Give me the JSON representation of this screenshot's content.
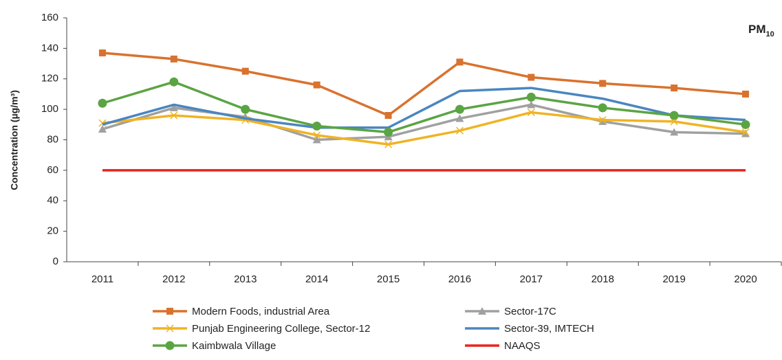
{
  "chart_data": {
    "type": "line",
    "annotation": {
      "text": "PM",
      "subscript": "10"
    },
    "ylabel": "Concentration (µg/m³)",
    "categories": [
      "2011",
      "2012",
      "2013",
      "2014",
      "2015",
      "2016",
      "2017",
      "2018",
      "2019",
      "2020"
    ],
    "ylim": [
      0,
      160
    ],
    "yticks": [
      0,
      20,
      40,
      60,
      80,
      100,
      120,
      140,
      160
    ],
    "grid": false,
    "legend": "bottom",
    "series": [
      {
        "name": "Modern Foods, industrial Area",
        "color": "#d9722e",
        "marker": "square",
        "values": [
          137,
          133,
          125,
          116,
          96,
          131,
          121,
          117,
          114,
          110
        ]
      },
      {
        "name": "Sector-17C",
        "color": "#a0a0a0",
        "marker": "triangle",
        "values": [
          87,
          101,
          95,
          80,
          82,
          94,
          103,
          92,
          85,
          84
        ]
      },
      {
        "name": "Punjab Engineering College, Sector-12",
        "color": "#f0b323",
        "marker": "x",
        "values": [
          91,
          96,
          93,
          83,
          77,
          86,
          98,
          93,
          92,
          85
        ]
      },
      {
        "name": "Sector-39, IMTECH",
        "color": "#4a86c0",
        "marker": "none",
        "values": [
          90,
          103,
          94,
          88,
          88,
          112,
          114,
          107,
          96,
          93
        ]
      },
      {
        "name": "Kaimbwala Village",
        "color": "#5ba443",
        "marker": "circle",
        "values": [
          104,
          118,
          100,
          89,
          85,
          100,
          108,
          101,
          96,
          90
        ]
      },
      {
        "name": "NAAQS",
        "color": "#e8231e",
        "marker": "none",
        "values": [
          60,
          60,
          60,
          60,
          60,
          60,
          60,
          60,
          60,
          60
        ]
      }
    ]
  }
}
